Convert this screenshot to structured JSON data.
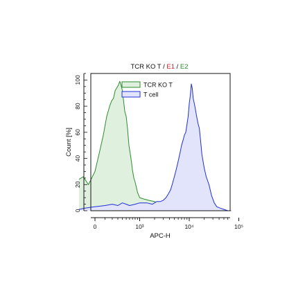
{
  "chart_data": {
    "type": "area",
    "title": [
      {
        "text": "TCR KO T",
        "color": "#111111"
      },
      {
        "text": " / ",
        "color": "#111111"
      },
      {
        "text": "E1",
        "color": "#cc1f1f"
      },
      {
        "text": " / ",
        "color": "#111111"
      },
      {
        "text": "E2",
        "color": "#2e8b2e"
      }
    ],
    "xlabel": "APC-H",
    "ylabel": "Count [%]",
    "x_scale": "biexponential",
    "xlim": [
      -200,
      100000
    ],
    "ylim": [
      0,
      105
    ],
    "x_ticks": [
      {
        "value": 0,
        "label": "0"
      },
      {
        "value": 1000,
        "label": "10³"
      },
      {
        "value": 10000,
        "label": "10⁴"
      },
      {
        "value": 100000,
        "label": "10⁵"
      }
    ],
    "y_ticks": [
      0,
      20,
      40,
      60,
      80,
      100
    ],
    "legend": {
      "position": "top-left"
    },
    "series": [
      {
        "name": "TCR KO T",
        "stroke": "#2e8b2e",
        "fill": "#dff0df",
        "x": [
          -180,
          -120,
          -60,
          0,
          40,
          80,
          120,
          160,
          190,
          220,
          250,
          280,
          310,
          340,
          370,
          400,
          430,
          460,
          500,
          540,
          580,
          620,
          660,
          700,
          750,
          800,
          850,
          900,
          1000,
          1200,
          1500,
          2000,
          2500,
          3000,
          3600,
          4200,
          5000,
          6000,
          7000,
          8000,
          9000,
          10000,
          11000,
          12000,
          14000,
          16000,
          20000,
          25000,
          30000,
          40000,
          50000,
          60000
        ],
        "values": [
          24,
          26,
          20,
          30,
          45,
          58,
          72,
          80,
          84,
          86,
          92,
          94,
          96,
          99,
          96,
          92,
          84,
          76,
          72,
          62,
          50,
          44,
          38,
          31,
          25,
          22,
          18,
          14,
          10,
          9,
          8,
          7,
          6,
          6,
          5,
          5,
          5,
          6,
          4,
          4,
          5,
          3,
          3,
          4,
          3,
          4,
          2,
          2,
          3,
          1,
          1,
          0
        ]
      },
      {
        "name": "T cell",
        "stroke": "#1f2fd6",
        "fill": "#e2e4fb",
        "x": [
          -180,
          -100,
          0,
          100,
          200,
          300,
          400,
          500,
          600,
          800,
          1000,
          1400,
          1800,
          2200,
          2600,
          3000,
          3400,
          3800,
          4200,
          4600,
          5000,
          5500,
          6000,
          6500,
          7000,
          7500,
          8000,
          8500,
          9000,
          9500,
          10000,
          10500,
          11000,
          11500,
          12000,
          13000,
          14000,
          15000,
          16000,
          17000,
          18000,
          20000,
          22000,
          25000,
          28000,
          32000,
          36000,
          42000,
          50000,
          60000,
          70000
        ],
        "values": [
          1,
          2,
          3,
          4,
          5,
          4,
          6,
          5,
          4,
          5,
          6,
          6,
          5,
          7,
          7,
          8,
          10,
          13,
          16,
          21,
          26,
          32,
          38,
          44,
          50,
          54,
          58,
          60,
          66,
          72,
          82,
          88,
          97,
          94,
          86,
          80,
          73,
          67,
          63,
          53,
          43,
          33,
          26,
          20,
          12,
          6,
          3,
          2,
          1,
          0,
          0
        ]
      }
    ]
  }
}
